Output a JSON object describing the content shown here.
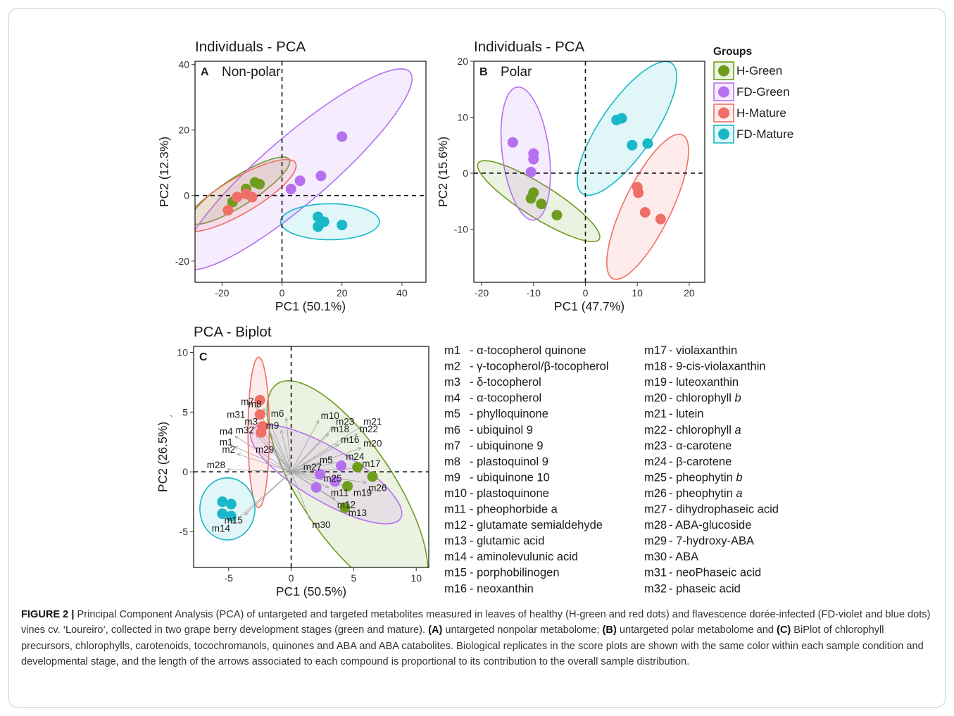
{
  "colors": {
    "H-Green": "#6f9c1c",
    "FD-Green": "#b570f0",
    "H-Mature": "#ef6e66",
    "FD-Mature": "#18b8c8"
  },
  "legend": {
    "title": "Groups",
    "items": [
      "H-Green",
      "FD-Green",
      "H-Mature",
      "FD-Mature"
    ]
  },
  "m_axis_label_gt": "`",
  "chart_data": [
    {
      "type": "scatter",
      "panel_letter": "A",
      "title": "Individuals - PCA",
      "subtitle": "Non-polar",
      "xlabel": "PC1 (50.1%)",
      "ylabel": "PC2 (12.3%)",
      "xlim": [
        -29,
        48
      ],
      "ylim": [
        -26.5,
        41
      ],
      "xticks": [
        -20,
        0,
        20,
        40
      ],
      "yticks": [
        -20,
        0,
        20,
        40
      ],
      "series": [
        {
          "name": "H-Green",
          "x": [
            -16.5,
            -12,
            -9,
            -7.5
          ],
          "y": [
            -2,
            2,
            4,
            3.5
          ],
          "ellipse": {
            "cx": -14,
            "cy": 1.5,
            "rx": 19,
            "ry": 4.5,
            "angle": 30
          }
        },
        {
          "name": "FD-Green",
          "x": [
            3,
            6,
            13,
            20
          ],
          "y": [
            2,
            4.5,
            6,
            18
          ],
          "ellipse": {
            "cx": 5,
            "cy": 8,
            "rx": 48,
            "ry": 10.5,
            "angle": 38
          }
        },
        {
          "name": "H-Mature",
          "x": [
            -18,
            -15,
            -12,
            -10
          ],
          "y": [
            -4.5,
            -0.5,
            0.5,
            -0.5
          ],
          "ellipse": {
            "cx": -14,
            "cy": 0,
            "rx": 21,
            "ry": 5.5,
            "angle": 28
          }
        },
        {
          "name": "FD-Mature",
          "x": [
            12,
            14,
            12,
            20
          ],
          "y": [
            -6.5,
            -8,
            -9.5,
            -9
          ],
          "ellipse": {
            "cx": 16,
            "cy": -8,
            "rx": 16.5,
            "ry": 5.5,
            "angle": 0
          }
        }
      ]
    },
    {
      "type": "scatter",
      "panel_letter": "B",
      "title": "Individuals - PCA",
      "subtitle": "Polar",
      "xlabel": "PC1 (47.7%)",
      "ylabel": "PC2 (15.6%)",
      "xlim": [
        -21.5,
        23
      ],
      "ylim": [
        -19.5,
        20
      ],
      "xticks": [
        -20,
        -10,
        0,
        10,
        20
      ],
      "yticks": [
        -10,
        0,
        10,
        20
      ],
      "series": [
        {
          "name": "H-Green",
          "x": [
            -10.5,
            -10,
            -8.5,
            -5.5
          ],
          "y": [
            -4.5,
            -3.5,
            -5.5,
            -7.5
          ],
          "ellipse": {
            "cx": -9,
            "cy": -5,
            "rx": 13.5,
            "ry": 3,
            "angle": -30
          }
        },
        {
          "name": "FD-Green",
          "x": [
            -14,
            -10,
            -10,
            -10.5
          ],
          "y": [
            5.5,
            3.5,
            2.5,
            0.2
          ],
          "ellipse": {
            "cx": -11.5,
            "cy": 3.5,
            "rx": 4.5,
            "ry": 12,
            "angle": 8
          }
        },
        {
          "name": "H-Mature",
          "x": [
            10,
            10.2,
            11.5,
            14.5
          ],
          "y": [
            -2.5,
            -3.5,
            -7,
            -8.2
          ],
          "ellipse": {
            "cx": 12,
            "cy": -6,
            "rx": 4.5,
            "ry": 14.5,
            "angle": -28
          }
        },
        {
          "name": "FD-Mature",
          "x": [
            6,
            7,
            9,
            12
          ],
          "y": [
            9.5,
            9.8,
            5,
            5.3
          ],
          "ellipse": {
            "cx": 8,
            "cy": 8,
            "rx": 5,
            "ry": 14.5,
            "angle": -37
          }
        }
      ]
    },
    {
      "type": "scatter",
      "panel_letter": "C",
      "title": "PCA - Biplot",
      "xlabel": "PC1 (50.5%)",
      "ylabel": "PC2 (26.5%)",
      "xlim": [
        -7.8,
        11
      ],
      "ylim": [
        -8,
        10.5
      ],
      "xticks": [
        -5,
        0,
        5,
        10
      ],
      "yticks": [
        -5,
        0,
        5,
        10
      ],
      "series": [
        {
          "name": "H-Green",
          "x": [
            4.5,
            5.3,
            6.5,
            4.3
          ],
          "y": [
            -1.2,
            0.4,
            -0.4,
            -3
          ],
          "ellipse": {
            "cx": 4.5,
            "cy": -1.5,
            "rx": 10.5,
            "ry": 3.8,
            "angle": -58
          }
        },
        {
          "name": "FD-Green",
          "x": [
            2,
            2.3,
            3.5,
            4
          ],
          "y": [
            -1.3,
            -0.2,
            -0.8,
            0.5
          ],
          "ellipse": {
            "cx": 2.8,
            "cy": -0.2,
            "rx": 7,
            "ry": 2.2,
            "angle": -32
          }
        },
        {
          "name": "H-Mature",
          "x": [
            -2.5,
            -2.5,
            -2.3,
            -2.4
          ],
          "y": [
            6,
            4.8,
            3.8,
            3.3
          ],
          "ellipse": {
            "cx": -2.6,
            "cy": 3.3,
            "rx": 0.85,
            "ry": 6.3,
            "angle": 0
          }
        },
        {
          "name": "FD-Mature",
          "x": [
            -5.5,
            -4.8,
            -5.5,
            -4.8
          ],
          "y": [
            -2.5,
            -2.7,
            -3.5,
            -3.7
          ],
          "ellipse": {
            "cx": -5.1,
            "cy": -3.1,
            "rx": 2.2,
            "ry": 2.6,
            "angle": 0
          }
        }
      ],
      "loadings": [
        {
          "id": "m1",
          "x": -4.5,
          "y": 2.1
        },
        {
          "id": "m2",
          "x": -4.3,
          "y": 1.5
        },
        {
          "id": "m3",
          "x": -2.5,
          "y": 3.8
        },
        {
          "id": "m4",
          "x": -4.5,
          "y": 3
        },
        {
          "id": "m5",
          "x": 2.1,
          "y": 0.6
        },
        {
          "id": "m6",
          "x": -0.4,
          "y": 4.5
        },
        {
          "id": "m7",
          "x": -2.8,
          "y": 5.5
        },
        {
          "id": "m8",
          "x": -2.2,
          "y": 5.3
        },
        {
          "id": "m9",
          "x": -0.8,
          "y": 3.5
        },
        {
          "id": "m10",
          "x": 2.2,
          "y": 4.3
        },
        {
          "id": "m11",
          "x": 3,
          "y": -1.3
        },
        {
          "id": "m12",
          "x": 3.5,
          "y": -2.3
        },
        {
          "id": "m13",
          "x": 4.4,
          "y": -3
        },
        {
          "id": "m14",
          "x": -4.7,
          "y": -4.3
        },
        {
          "id": "m15",
          "x": -3.7,
          "y": -3.6
        },
        {
          "id": "m16",
          "x": 3.8,
          "y": 2.3
        },
        {
          "id": "m17",
          "x": 5.5,
          "y": 0.3
        },
        {
          "id": "m18",
          "x": 3,
          "y": 3.2
        },
        {
          "id": "m19",
          "x": 4.8,
          "y": -1.3
        },
        {
          "id": "m20",
          "x": 5.6,
          "y": 2
        },
        {
          "id": "m21",
          "x": 5.6,
          "y": 3.8
        },
        {
          "id": "m22",
          "x": 5.3,
          "y": 3.2
        },
        {
          "id": "m23",
          "x": 3.4,
          "y": 3.8
        },
        {
          "id": "m24",
          "x": 4.2,
          "y": 0.9
        },
        {
          "id": "m25",
          "x": 2.4,
          "y": -0.1
        },
        {
          "id": "m26",
          "x": 6,
          "y": -0.9
        },
        {
          "id": "m27",
          "x": 0.8,
          "y": 0
        },
        {
          "id": "m28",
          "x": -5.1,
          "y": 0.2
        },
        {
          "id": "m29",
          "x": -1.2,
          "y": 1.5
        },
        {
          "id": "m30",
          "x": 1.5,
          "y": -4
        },
        {
          "id": "m31",
          "x": -3.5,
          "y": 4.4
        },
        {
          "id": "m32",
          "x": -2.8,
          "y": 3.1
        }
      ]
    }
  ],
  "compounds_left": [
    {
      "code": "m1 ",
      "name": "α-tocopherol quinone"
    },
    {
      "code": "m2 ",
      "name": "γ-tocopherol/β-tocopherol"
    },
    {
      "code": "m3 ",
      "name": "δ-tocopherol"
    },
    {
      "code": "m4 ",
      "name": "α-tocopherol"
    },
    {
      "code": "m5 ",
      "name": "phylloquinone"
    },
    {
      "code": "m6 ",
      "name": "ubiquinol 9"
    },
    {
      "code": "m7 ",
      "name": "ubiquinone 9"
    },
    {
      "code": "m8 ",
      "name": "plastoquinol 9"
    },
    {
      "code": "m9 ",
      "name": "ubiquinone 10"
    },
    {
      "code": "m10",
      "name": "plastoquinone"
    },
    {
      "code": "m11",
      "name": "pheophorbide a"
    },
    {
      "code": "m12",
      "name": "glutamate semialdehyde"
    },
    {
      "code": "m13",
      "name": "glutamic acid"
    },
    {
      "code": "m14",
      "name": "aminolevulunic acid"
    },
    {
      "code": "m15",
      "name": "porphobilinogen"
    },
    {
      "code": "m16",
      "name": "neoxanthin"
    }
  ],
  "compounds_right": [
    {
      "code": "m17",
      "name": "violaxanthin",
      "italic": ""
    },
    {
      "code": "m18",
      "name": "9-cis-violaxanthin",
      "italic": ""
    },
    {
      "code": "m19",
      "name": "luteoxanthin",
      "italic": ""
    },
    {
      "code": "m20",
      "name": "chlorophyll ",
      "italic": "b"
    },
    {
      "code": "m21",
      "name": "lutein",
      "italic": ""
    },
    {
      "code": "m22",
      "name": "chlorophyll ",
      "italic": "a"
    },
    {
      "code": "m23",
      "name": "α-carotene",
      "italic": ""
    },
    {
      "code": "m24",
      "name": "β-carotene",
      "italic": ""
    },
    {
      "code": "m25",
      "name": "pheophytin ",
      "italic": "b"
    },
    {
      "code": "m26",
      "name": "pheophytin ",
      "italic": "a"
    },
    {
      "code": "m27",
      "name": "dihydrophaseic acid",
      "italic": ""
    },
    {
      "code": "m28",
      "name": "ABA-glucoside",
      "italic": ""
    },
    {
      "code": "m29",
      "name": "7-hydroxy-ABA",
      "italic": ""
    },
    {
      "code": "m30",
      "name": "ABA",
      "italic": ""
    },
    {
      "code": "m31",
      "name": "neoPhaseic acid",
      "italic": ""
    },
    {
      "code": "m32",
      "name": "phaseic acid",
      "italic": ""
    }
  ],
  "caption": {
    "label": "FIGURE 2 |",
    "text1": " Principal Component Analysis (PCA) of untargeted and targeted metabolites measured in leaves of healthy (H-green and red dots) and flavescence dorée-infected (FD-violet and blue dots) vines cv. ‘Loureiro’, collected in two grape berry development stages (green and mature). ",
    "a": "(A)",
    "text2": " untargeted nonpolar metabolome; ",
    "b": "(B)",
    "text3": " untargeted polar metabolome and ",
    "c": "(C)",
    "text4": " BiPlot of chlorophyll precursors, chlorophylls, carotenoids, tocochromanols, quinones and ABA and ABA catabolites. Biological replicates in the score plots are shown with the same color within each sample condition and developmental stage, and the length of the arrows associated to each compound is proportional to its contribution to the overall sample distribution."
  }
}
